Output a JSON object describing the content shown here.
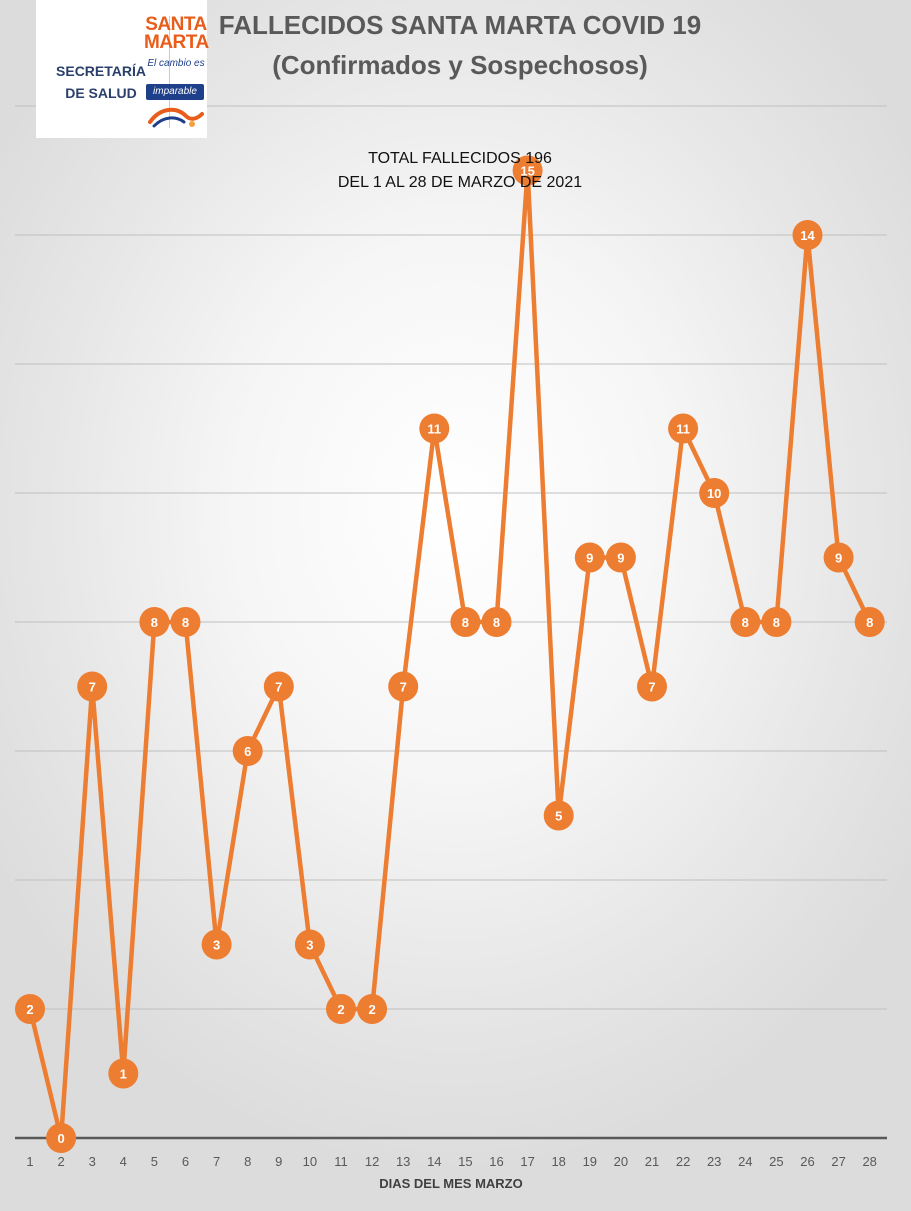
{
  "header": {
    "title_line1": "FALLECIDOS SANTA MARTA COVID 19",
    "title_line2": "(Confirmados y Sospechosos)"
  },
  "logo": {
    "secretaria_line1": "SECRETARÍA",
    "secretaria_line2": "DE SALUD",
    "brand_line1": "SANTA",
    "brand_line2": "MARTA",
    "slogan_line1": "El cambio es",
    "slogan_line2": "imparable"
  },
  "annotation": {
    "line1": "TOTAL FALLECIDOS 196",
    "line2": "DEL 1 AL 28 DE MARZO DE 2021"
  },
  "colors": {
    "series": "#ED7D31",
    "title": "#595959",
    "grid": "#BFBFBF",
    "axis": "#595959",
    "brand_orange": "#E85D1B",
    "brand_blue": "#1E3F8A"
  },
  "chart_data": {
    "type": "line",
    "title": "FALLECIDOS SANTA MARTA COVID 19 (Confirmados y Sospechosos)",
    "xlabel": "DIAS DEL MES MARZO",
    "ylabel": "",
    "categories": [
      "1",
      "2",
      "3",
      "4",
      "5",
      "6",
      "7",
      "8",
      "9",
      "10",
      "11",
      "12",
      "13",
      "14",
      "15",
      "16",
      "17",
      "18",
      "19",
      "20",
      "21",
      "22",
      "23",
      "24",
      "25",
      "26",
      "27",
      "28"
    ],
    "series": [
      {
        "values": [
          2,
          0,
          7,
          1,
          8,
          8,
          3,
          6,
          7,
          3,
          2,
          2,
          7,
          11,
          8,
          8,
          15,
          5,
          9,
          9,
          7,
          11,
          10,
          8,
          8,
          14,
          9,
          8
        ]
      }
    ],
    "ylim": [
      0,
      16
    ],
    "grid": true,
    "gridline_every": 2,
    "data_labels": true,
    "markers": "circle",
    "legend": "none"
  }
}
